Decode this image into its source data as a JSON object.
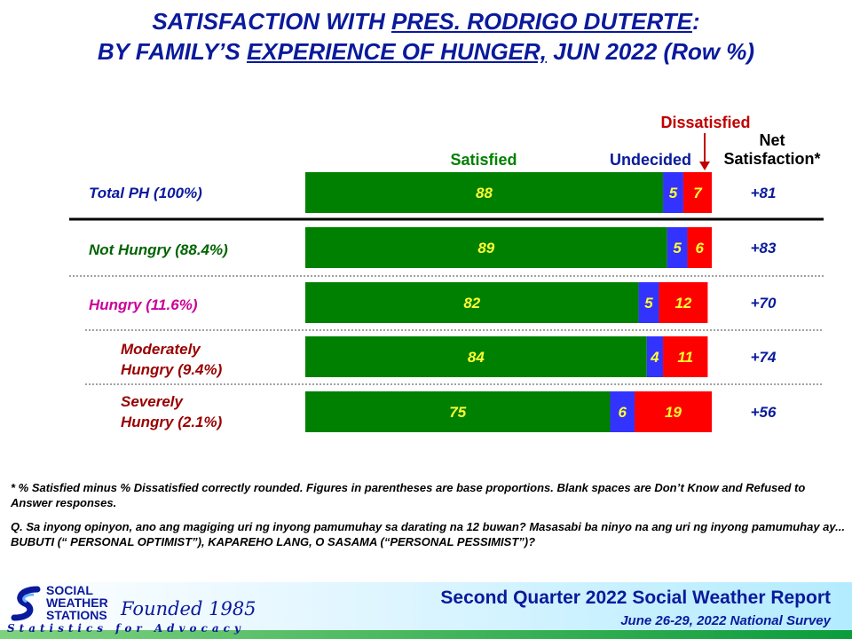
{
  "title": {
    "line1_a": "SATISFACTION WITH ",
    "line1_b": "PRES. RODRIGO DUTERTE",
    "line1_c": ":",
    "line2_a": "BY FAMILY’S ",
    "line2_b": "EXPERIENCE OF HUNGER,",
    "line2_c": " JUN 2022 (Row %)"
  },
  "headers": {
    "satisfied": "Satisfied",
    "undecided": "Undecided",
    "dissatisfied": "Dissatisfied",
    "net_line1": "Net",
    "net_line2": "Satisfaction*"
  },
  "colors": {
    "satisfied": "#008000",
    "undecided": "#3333ff",
    "dissatisfied": "#ff0000",
    "title_blue": "#0a1a9c",
    "label_green": "#006400",
    "label_magenta": "#cc0099",
    "label_darkred": "#990000"
  },
  "chart_data": {
    "type": "bar",
    "orientation": "horizontal",
    "stacked": true,
    "categories": [
      "Total PH (100%)",
      "Not Hungry (88.4%)",
      "Hungry (11.6%)",
      "Moderately Hungry (9.4%)",
      "Severely Hungry (2.1%)"
    ],
    "series": [
      {
        "name": "Satisfied",
        "values": [
          88,
          89,
          82,
          84,
          75
        ]
      },
      {
        "name": "Undecided",
        "values": [
          5,
          5,
          5,
          4,
          6
        ]
      },
      {
        "name": "Dissatisfied",
        "values": [
          7,
          6,
          12,
          11,
          19
        ]
      }
    ],
    "net_satisfaction": [
      "+81",
      "+83",
      "+70",
      "+74",
      "+56"
    ],
    "xlim": [
      0,
      100
    ]
  },
  "rows": [
    {
      "label1": "Total PH (100%)",
      "label2": "",
      "color": "#0a1a9c"
    },
    {
      "label1": "Not Hungry (88.4%)",
      "label2": "",
      "color": "#006400"
    },
    {
      "label1": "Hungry (11.6%)",
      "label2": "",
      "color": "#cc0099"
    },
    {
      "label1": "Moderately",
      "label2": "Hungry (9.4%)",
      "color": "#990000"
    },
    {
      "label1": "Severely",
      "label2": "Hungry (2.1%)",
      "color": "#990000"
    }
  ],
  "footnotes": {
    "note": "* % Satisfied minus % Dissatisfied correctly rounded. Figures in parentheses are base proportions. Blank spaces are Don’t Know and Refused to Answer responses.",
    "question": "Q. Sa inyong opinyon, ano ang magiging uri ng inyong pamumuhay sa darating na 12 buwan? Masasabi ba ninyo na ang uri ng inyong pamumuhay ay... BUBUTI (“ PERSONAL OPTIMIST”), KAPAREHO LANG, O SASAMA (“PERSONAL PESSIMIST”)?"
  },
  "footer": {
    "logo_org": "SOCIAL WEATHER STATIONS",
    "logo_founded": "Founded 1985",
    "logo_tagline": "Statistics for Advocacy",
    "report_title": "Second Quarter 2022 Social Weather Report",
    "report_subtitle": "June 26-29, 2022 National Survey"
  }
}
